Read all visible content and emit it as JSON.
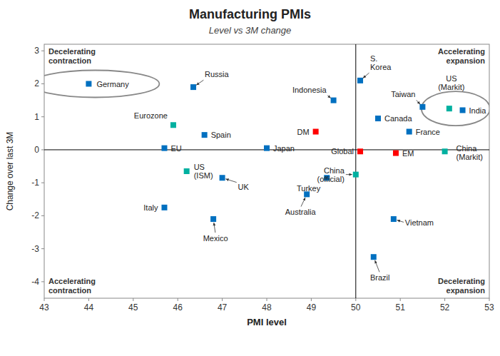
{
  "chart_data": {
    "type": "scatter",
    "title": "Manufacturing PMIs",
    "subtitle": "Level vs 3M change",
    "xlabel": "PMI level",
    "ylabel": "Change over last 3M",
    "xlim": [
      43,
      53
    ],
    "ylim": [
      -4.5,
      3.2
    ],
    "xticks": [
      43,
      44,
      45,
      46,
      47,
      48,
      49,
      50,
      51,
      52,
      53
    ],
    "yticks": [
      -4,
      -3,
      -2,
      -1,
      0,
      1,
      2,
      3
    ],
    "grid": false,
    "labels": [
      "Germany",
      "Russia",
      "Eurozone",
      "Spain",
      "EU",
      "Japan",
      "US\n(ISM)",
      "UK",
      "Italy",
      "Mexico",
      "Australia",
      "Turkey",
      "S.\nKorea",
      "Indonesia",
      "Canada",
      "DM",
      "France",
      "Global",
      "EM",
      "China\n(official)",
      "Vietnam",
      "Brazil",
      "Taiwan",
      "India",
      "US\n(Markit)",
      "China\n(Markit)"
    ],
    "x": [
      44.0,
      46.35,
      45.9,
      46.6,
      45.7,
      48.0,
      46.2,
      47.0,
      45.7,
      46.8,
      48.9,
      49.35,
      50.1,
      49.5,
      50.5,
      49.1,
      51.2,
      50.1,
      50.9,
      50.0,
      50.85,
      50.4,
      51.5,
      52.4,
      52.1,
      52.0
    ],
    "values": [
      2.0,
      1.9,
      0.75,
      0.45,
      0.05,
      0.05,
      -0.65,
      -0.85,
      -1.75,
      -2.1,
      -1.35,
      -0.85,
      2.1,
      1.5,
      0.95,
      0.55,
      0.55,
      -0.05,
      -0.1,
      -0.75,
      -2.1,
      -3.25,
      1.3,
      1.2,
      1.25,
      -0.05
    ],
    "colors": [
      "#0070C0",
      "#0070C0",
      "#00B0A0",
      "#0070C0",
      "#0070C0",
      "#0070C0",
      "#00B0A0",
      "#0070C0",
      "#0070C0",
      "#0070C0",
      "#0070C0",
      "#0070C0",
      "#0070C0",
      "#0070C0",
      "#0070C0",
      "#FF0000",
      "#0070C0",
      "#FF0000",
      "#FF0000",
      "#00B0A0",
      "#0070C0",
      "#0070C0",
      "#0070C0",
      "#0070C0",
      "#00B0A0",
      "#00B0A0"
    ],
    "reference_lines": {
      "x": 50,
      "y": 0
    },
    "annotations": [
      "Decelerating\ncontraction",
      "Accelerating\nexpansion",
      "Accelerating\ncontraction",
      "Decelerating\nexpansion"
    ]
  }
}
